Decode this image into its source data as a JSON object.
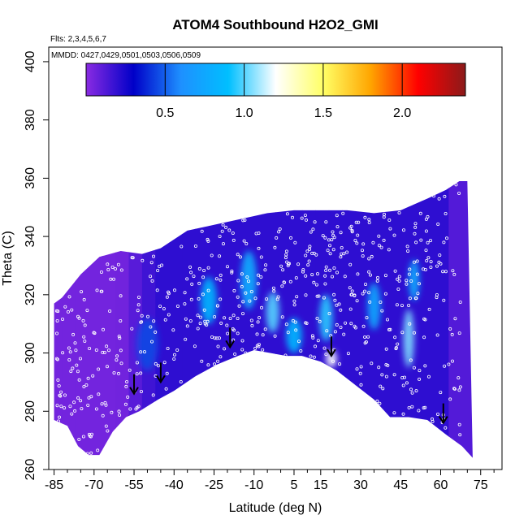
{
  "chart_data": {
    "type": "heatmap",
    "title": "ATOM4 Southbound H2O2_GMI",
    "flights_label": "Flts: 2,3,4,5,6,7",
    "dates_label": "MMDD: 0427,0429,0501,0503,0506,0509",
    "xlabel": "Latitude (deg N)",
    "ylabel": "Theta (C)",
    "xlim": [
      -87,
      83
    ],
    "ylim": [
      260,
      405
    ],
    "x_ticks": [
      -85,
      -70,
      -55,
      -40,
      -25,
      -10,
      5,
      15,
      30,
      45,
      60,
      75
    ],
    "x_minor_ticks": [
      -80,
      -75,
      -65,
      -60,
      -50,
      -45,
      -35,
      -30,
      -20,
      -15,
      -5,
      0,
      10,
      20,
      25,
      35,
      40,
      50,
      55,
      65,
      70,
      80
    ],
    "y_ticks": [
      260,
      280,
      300,
      320,
      340,
      360,
      380,
      400
    ],
    "colorbar": {
      "min": 0.0,
      "max": 2.4,
      "ticks": [
        0.5,
        1.0,
        1.5,
        2.0
      ],
      "tick_labels": [
        "0.5",
        "1.0",
        "1.5",
        "2.0"
      ],
      "colors": [
        "#8a2be2",
        "#0000c8",
        "#1e90ff",
        "#00bfff",
        "#ffffff",
        "#ffff66",
        "#ffa500",
        "#ff0000",
        "#8b1a1a"
      ]
    },
    "upper_boundary": [
      [
        -85,
        317
      ],
      [
        -82,
        319
      ],
      [
        -75,
        327
      ],
      [
        -68,
        333
      ],
      [
        -60,
        335
      ],
      [
        -52,
        334
      ],
      [
        -45,
        336
      ],
      [
        -35,
        342
      ],
      [
        -25,
        344
      ],
      [
        -15,
        346
      ],
      [
        -5,
        348
      ],
      [
        5,
        349
      ],
      [
        15,
        349
      ],
      [
        25,
        349
      ],
      [
        35,
        348
      ],
      [
        45,
        349
      ],
      [
        55,
        353
      ],
      [
        62,
        356
      ],
      [
        67,
        359
      ],
      [
        70,
        359
      ]
    ],
    "lower_boundary": [
      [
        -85,
        277
      ],
      [
        -80,
        275
      ],
      [
        -76,
        268
      ],
      [
        -72,
        265
      ],
      [
        -68,
        265
      ],
      [
        -63,
        273
      ],
      [
        -58,
        278
      ],
      [
        -53,
        280
      ],
      [
        -46,
        284
      ],
      [
        -40,
        287
      ],
      [
        -32,
        292
      ],
      [
        -24,
        296
      ],
      [
        -16,
        299
      ],
      [
        -10,
        301
      ],
      [
        -4,
        300
      ],
      [
        2,
        299
      ],
      [
        8,
        299
      ],
      [
        15,
        297
      ],
      [
        21,
        294
      ],
      [
        28,
        289
      ],
      [
        35,
        284
      ],
      [
        41,
        278
      ],
      [
        48,
        278
      ],
      [
        55,
        277
      ],
      [
        62,
        272
      ],
      [
        68,
        268
      ],
      [
        72,
        264
      ]
    ],
    "high_value_regions": [
      {
        "lat": -27,
        "theta": 318,
        "value": 0.85,
        "dlat": 6,
        "dtheta": 16
      },
      {
        "lat": -12,
        "theta": 325,
        "value": 0.8,
        "dlat": 6,
        "dtheta": 20
      },
      {
        "lat": -3,
        "theta": 314,
        "value": 1.0,
        "dlat": 5,
        "dtheta": 14
      },
      {
        "lat": 5,
        "theta": 306,
        "value": 0.85,
        "dlat": 6,
        "dtheta": 12
      },
      {
        "lat": 17,
        "theta": 312,
        "value": 0.95,
        "dlat": 5,
        "dtheta": 16
      },
      {
        "lat": 19,
        "theta": 298,
        "value": 1.2,
        "dlat": 4,
        "dtheta": 6
      },
      {
        "lat": 35,
        "theta": 316,
        "value": 0.75,
        "dlat": 5,
        "dtheta": 16
      },
      {
        "lat": 48,
        "theta": 305,
        "value": 1.05,
        "dlat": 4,
        "dtheta": 20
      },
      {
        "lat": 50,
        "theta": 325,
        "value": 0.8,
        "dlat": 4,
        "dtheta": 14
      },
      {
        "lat": -50,
        "theta": 303,
        "value": 0.45,
        "dlat": 8,
        "dtheta": 18
      }
    ],
    "arrows": [
      {
        "lat": -55,
        "theta": 286
      },
      {
        "lat": -45,
        "theta": 290
      },
      {
        "lat": -19,
        "theta": 302
      },
      {
        "lat": 19,
        "theta": 299
      },
      {
        "lat": 61,
        "theta": 276
      }
    ]
  }
}
